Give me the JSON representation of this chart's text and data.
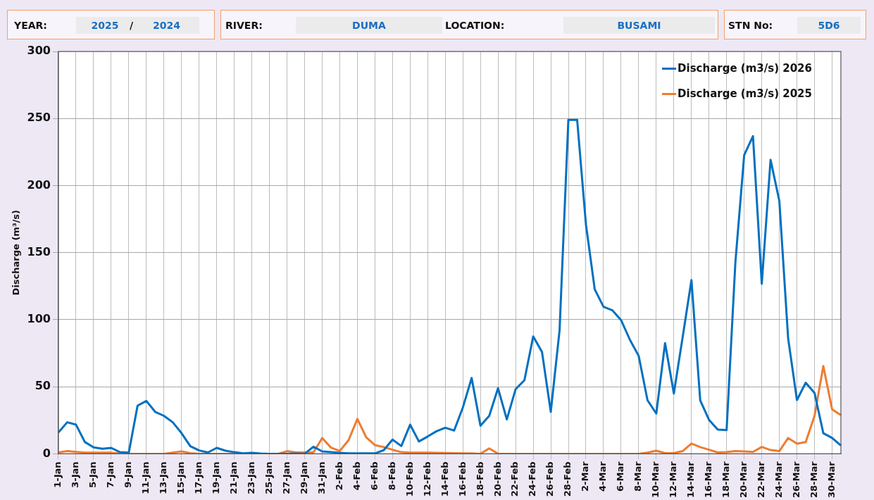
{
  "chart_data": {
    "type": "line",
    "annotations": [
      "YEAR:",
      "2025",
      "/",
      "2024",
      "RIVER:",
      "DUMA",
      "LOCATION:",
      "BUSAMI",
      "STN No:",
      "5D6"
    ],
    "ylabel": "Discharge (m³/s)",
    "categories": [
      "1-Jan",
      null,
      "3-Jan",
      null,
      "5-Jan",
      null,
      "7-Jan",
      null,
      "9-Jan",
      null,
      "11-Jan",
      null,
      "13-Jan",
      null,
      "15-Jan",
      null,
      "17-Jan",
      null,
      "19-Jan",
      null,
      "21-Jan",
      null,
      "23-Jan",
      null,
      "25-Jan",
      null,
      "27-Jan",
      null,
      "29-Jan",
      null,
      "31-Jan",
      null,
      "2-Feb",
      null,
      "4-Feb",
      null,
      "6-Feb",
      null,
      "8-Feb",
      null,
      "10-Feb",
      null,
      "12-Feb",
      null,
      "14-Feb",
      null,
      "16-Feb",
      null,
      "18-Feb",
      null,
      "20-Feb",
      null,
      "22-Feb",
      null,
      "24-Feb",
      null,
      "26-Feb",
      null,
      "28-Feb",
      null,
      "2-Mar",
      null,
      "4-Mar",
      null,
      "6-Mar",
      null,
      "8-Mar",
      null,
      "10-Mar",
      null,
      "12-Mar",
      null,
      "14-Mar",
      null,
      "16-Mar",
      null,
      "18-Mar",
      null,
      "20-Mar",
      null,
      "22-Mar",
      null,
      "24-Mar",
      null,
      "26-Mar",
      null,
      "28-Mar",
      null,
      "30-Mar",
      null
    ],
    "series": [
      {
        "name": "Discharge (m3/s) 2026",
        "color": "#0070c0",
        "values": [
          16,
          23.5,
          21.7,
          8.8,
          4.8,
          3.7,
          4.4,
          1.2,
          0.9,
          35.9,
          39.4,
          31.3,
          28.3,
          23.5,
          15.4,
          5.7,
          2.5,
          1,
          4.4,
          2.3,
          1.2,
          0.4,
          0.7,
          0.2,
          0,
          0,
          0,
          0.2,
          0,
          5.3,
          1.8,
          1.2,
          0.7,
          0.3,
          0.3,
          0.3,
          0.3,
          2.7,
          10.6,
          5.8,
          21.7,
          9.2,
          12.9,
          16.8,
          19.4,
          17.3,
          34.5,
          56.5,
          20.9,
          28.3,
          48.9,
          25.6,
          48.2,
          54.8,
          87.5,
          76,
          31.3,
          92,
          249,
          249,
          171,
          122.6,
          109.6,
          107,
          99.6,
          85,
          73,
          40,
          30,
          82.5,
          45,
          87,
          129.5,
          39.8,
          25.3,
          18,
          17.7,
          143,
          222.8,
          236.8,
          126.8,
          219.2,
          188.4,
          86,
          40.1,
          53,
          45.4,
          15.4,
          11.8,
          6.2
        ]
      },
      {
        "name": "Discharge (m3/s) 2025",
        "color": "#ed7d31",
        "values": [
          1,
          2,
          1.4,
          0.9,
          0.8,
          0.8,
          0.8,
          0.2,
          0,
          0,
          0,
          0,
          0,
          0.9,
          1.8,
          0.5,
          0,
          0,
          0,
          0,
          0,
          0,
          0,
          0,
          0,
          0,
          2,
          1,
          1,
          1,
          11.8,
          4.6,
          2.1,
          10.2,
          26,
          12.4,
          6.5,
          5,
          3,
          1.2,
          0.9,
          0.9,
          0.8,
          0.7,
          0.6,
          0.5,
          0.4,
          0.4,
          0,
          4,
          0,
          0,
          0,
          0,
          0,
          0,
          0,
          0,
          0,
          0,
          0,
          0,
          0,
          0,
          0,
          0,
          0,
          0.9,
          2.3,
          0.5,
          0.5,
          2,
          7.6,
          5,
          3,
          1,
          1.2,
          2,
          1.8,
          1.4,
          5.1,
          2.8,
          2,
          11.8,
          7.6,
          8.7,
          28.3,
          65.4,
          33.2,
          28.8
        ]
      }
    ],
    "ylim": [
      0,
      300
    ],
    "yticks": [
      0,
      50,
      100,
      150,
      200,
      250,
      300
    ],
    "grid": true,
    "legend": "top right",
    "marker": "none",
    "line_style": "solid"
  }
}
